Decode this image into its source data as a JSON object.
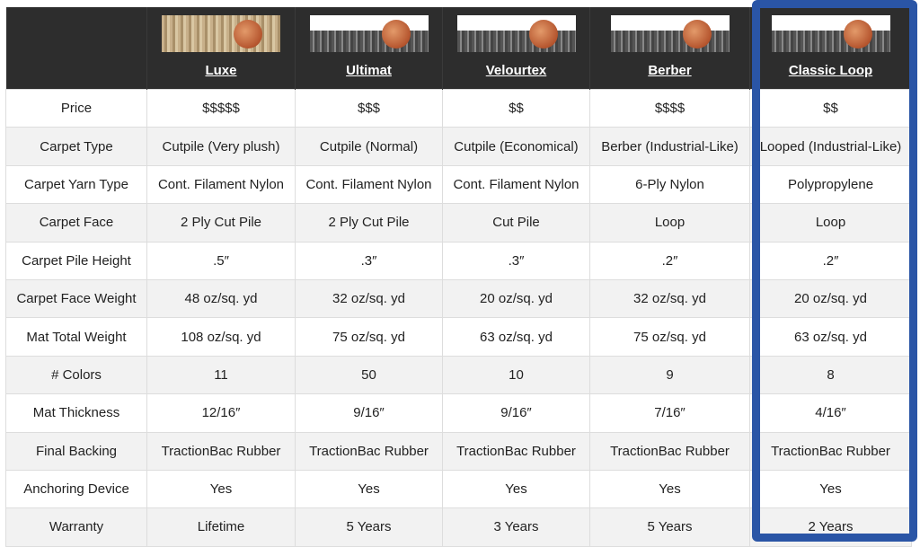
{
  "columns": [
    {
      "name": "Luxe",
      "image": "carpet-sample-with-penny"
    },
    {
      "name": "Ultimat",
      "image": "carpet-sample-with-penny"
    },
    {
      "name": "Velourtex",
      "image": "carpet-sample-with-penny"
    },
    {
      "name": "Berber",
      "image": "carpet-sample-with-penny"
    },
    {
      "name": "Classic Loop",
      "image": "carpet-sample-with-penny"
    }
  ],
  "highlight_color": "#2a55a6",
  "highlighted_column": "Classic Loop",
  "rows": [
    {
      "label": "Price",
      "values": [
        "$$$$$",
        "$$$",
        "$$",
        "$$$$",
        "$$"
      ]
    },
    {
      "label": "Carpet Type",
      "values": [
        "Cutpile (Very plush)",
        "Cutpile (Normal)",
        "Cutpile (Economical)",
        "Berber (Industrial-Like)",
        "Looped (Industrial-Like)"
      ]
    },
    {
      "label": "Carpet Yarn Type",
      "values": [
        "Cont. Filament Nylon",
        "Cont. Filament Nylon",
        "Cont. Filament Nylon",
        "6-Ply Nylon",
        "Polypropylene"
      ]
    },
    {
      "label": "Carpet Face",
      "values": [
        "2 Ply Cut Pile",
        "2 Ply Cut Pile",
        "Cut Pile",
        "Loop",
        "Loop"
      ]
    },
    {
      "label": "Carpet Pile Height",
      "values": [
        ".5″",
        ".3″",
        ".3″",
        ".2″",
        ".2″"
      ]
    },
    {
      "label": "Carpet Face Weight",
      "values": [
        "48 oz/sq. yd",
        "32 oz/sq. yd",
        "20 oz/sq. yd",
        "32 oz/sq. yd",
        "20 oz/sq. yd"
      ]
    },
    {
      "label": "Mat Total Weight",
      "values": [
        "108 oz/sq. yd",
        "75 oz/sq. yd",
        "63 oz/sq. yd",
        "75 oz/sq. yd",
        "63 oz/sq. yd"
      ]
    },
    {
      "label": "# Colors",
      "values": [
        "11",
        "50",
        "10",
        "9",
        "8"
      ]
    },
    {
      "label": "Mat Thickness",
      "values": [
        "12/16″",
        "9/16″",
        "9/16″",
        "7/16″",
        "4/16″"
      ]
    },
    {
      "label": "Final Backing",
      "values": [
        "TractionBac Rubber",
        "TractionBac Rubber",
        "TractionBac Rubber",
        "TractionBac Rubber",
        "TractionBac Rubber"
      ]
    },
    {
      "label": "Anchoring Device",
      "values": [
        "Yes",
        "Yes",
        "Yes",
        "Yes",
        "Yes"
      ]
    },
    {
      "label": "Warranty",
      "values": [
        "Lifetime",
        "5 Years",
        "3 Years",
        "5 Years",
        "2 Years"
      ]
    }
  ]
}
